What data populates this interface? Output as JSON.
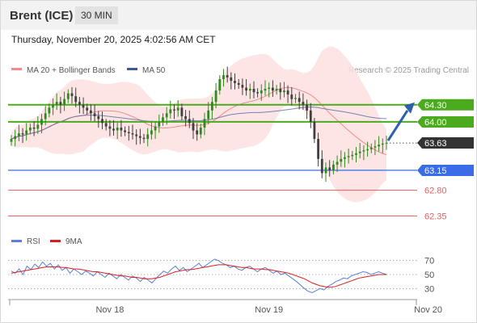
{
  "header": {
    "title": "Brent (ICE)",
    "interval": "30 MIN"
  },
  "timestamp": "Thursday, November 20, 2025 4:02:56 AM CET",
  "legend": [
    {
      "name": "MA 20 + Bollinger Bands",
      "color": "#f08c8c"
    },
    {
      "name": "MA 50",
      "color": "#3a5a9c"
    }
  ],
  "credit": "Research © 2025 Trading Central",
  "rsi_legend": [
    {
      "name": "RSI",
      "color": "#5b7fd6"
    },
    {
      "name": "9MA",
      "color": "#d62020"
    }
  ],
  "colors": {
    "up": "#2e8b1e",
    "down": "#404040",
    "resistance": "#4caa1e",
    "support": "#3b6ce8",
    "target": "#e06060",
    "arrow": "#2e5fa8"
  },
  "chart_data": {
    "type": "candlestick",
    "y_range": [
      62.2,
      64.75
    ],
    "x_labels": [
      {
        "label": "Nov 18",
        "index": 26
      },
      {
        "label": "Nov 19",
        "index": 68
      },
      {
        "label": "Nov 20",
        "index": 110
      }
    ],
    "levels": [
      {
        "value": 64.3,
        "label": "64.30",
        "kind": "resistance"
      },
      {
        "value": 64.0,
        "label": "64.00",
        "kind": "resistance"
      },
      {
        "value": 63.63,
        "label": "63.63",
        "kind": "last"
      },
      {
        "value": 63.15,
        "label": "63.15",
        "kind": "support"
      },
      {
        "value": 62.8,
        "label": "62.80",
        "kind": "target"
      },
      {
        "value": 62.35,
        "label": "62.35",
        "kind": "target"
      }
    ],
    "closes": [
      63.7,
      63.75,
      63.8,
      63.78,
      63.85,
      63.9,
      63.88,
      63.95,
      64.05,
      64.15,
      64.25,
      64.3,
      64.35,
      64.3,
      64.4,
      64.5,
      64.45,
      64.35,
      64.3,
      64.25,
      64.2,
      64.15,
      64.1,
      64.05,
      63.98,
      63.92,
      63.88,
      63.85,
      63.9,
      63.85,
      63.82,
      63.8,
      63.78,
      63.75,
      63.72,
      63.7,
      63.78,
      63.85,
      63.92,
      64.0,
      64.08,
      64.15,
      64.22,
      64.2,
      64.25,
      64.1,
      64.05,
      63.98,
      63.85,
      63.78,
      63.9,
      64.05,
      64.2,
      64.35,
      64.55,
      64.75,
      64.82,
      64.78,
      64.72,
      64.68,
      64.65,
      64.6,
      64.55,
      64.58,
      64.52,
      64.5,
      64.55,
      64.58,
      64.6,
      64.55,
      64.58,
      64.52,
      64.55,
      64.48,
      64.4,
      64.42,
      64.35,
      64.3,
      64.2,
      64.0,
      63.7,
      63.35,
      63.1,
      63.2,
      63.15,
      63.25,
      63.3,
      63.35,
      63.38,
      63.4,
      63.42,
      63.45,
      63.48,
      63.5,
      63.52,
      63.55,
      63.57,
      63.6,
      63.62,
      63.63
    ],
    "rsi": {
      "y_range": [
        20,
        80
      ],
      "ticks": [
        70,
        50,
        30
      ],
      "rsi_values": [
        55,
        52,
        58,
        50,
        62,
        57,
        65,
        60,
        68,
        62,
        66,
        58,
        64,
        56,
        60,
        52,
        58,
        54,
        50,
        55,
        52,
        48,
        54,
        50,
        46,
        52,
        48,
        44,
        50,
        46,
        42,
        48,
        45,
        40,
        46,
        42,
        38,
        44,
        50,
        55,
        52,
        58,
        62,
        56,
        60,
        54,
        58,
        62,
        66,
        60,
        64,
        68,
        72,
        70,
        66,
        64,
        60,
        62,
        58,
        56,
        60,
        62,
        58,
        54,
        58,
        60,
        56,
        52,
        55,
        50,
        52,
        48,
        44,
        40,
        35,
        30,
        26,
        24,
        27,
        30,
        28,
        33,
        36,
        40,
        42,
        45,
        44,
        48,
        50,
        52,
        54,
        53,
        50,
        52,
        54,
        52,
        50
      ],
      "ma_values": [
        52,
        53,
        54,
        55,
        56,
        57,
        58,
        59,
        60,
        61,
        61,
        61,
        61,
        60,
        60,
        59,
        58,
        58,
        57,
        56,
        55,
        54,
        54,
        53,
        52,
        51,
        50,
        49,
        48,
        48,
        47,
        46,
        46,
        45,
        44,
        44,
        44,
        45,
        46,
        48,
        50,
        52,
        54,
        55,
        56,
        57,
        57,
        58,
        59,
        60,
        61,
        62,
        63,
        64,
        64,
        64,
        63,
        62,
        61,
        60,
        60,
        59,
        58,
        58,
        58,
        57,
        57,
        56,
        55,
        54,
        53,
        52,
        50,
        48,
        46,
        44,
        41,
        38,
        36,
        34,
        33,
        32,
        32,
        33,
        35,
        37,
        39,
        41,
        43,
        45,
        46,
        47,
        48,
        49,
        50,
        50,
        50
      ]
    }
  }
}
